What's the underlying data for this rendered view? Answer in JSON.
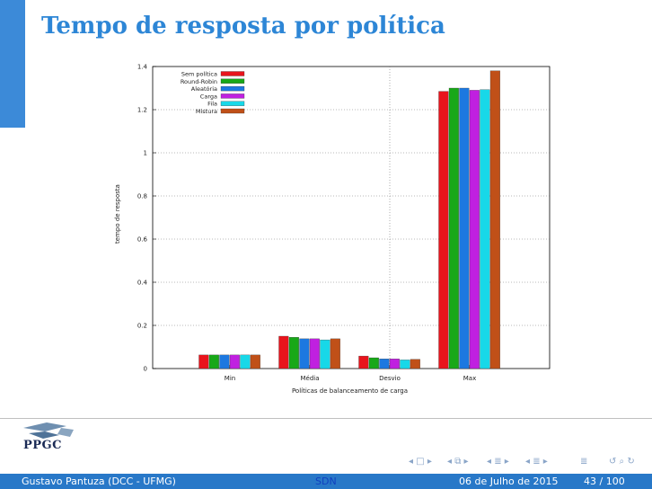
{
  "slide": {
    "title": "Tempo de resposta por política",
    "accent_color": "#3c8ad8",
    "title_color": "#2d86d6"
  },
  "chart_data": {
    "type": "bar",
    "title": "",
    "xlabel": "Políticas de balanceamento de carga",
    "ylabel": "tempo de resposta",
    "ylim": [
      0,
      1.4
    ],
    "yticks": [
      "0",
      "0.2",
      "0.4",
      "0.6",
      "0.8",
      "1",
      "1.2",
      "1.4"
    ],
    "categories": [
      "Min",
      "Média",
      "Desvio",
      "Max"
    ],
    "grid": "dotted, horizontal and vertical",
    "legend_position": "top-left",
    "series": [
      {
        "name": "Sem política",
        "color": "#e8141c",
        "values": [
          0.063,
          0.15,
          0.058,
          1.285
        ]
      },
      {
        "name": "Round-Robin",
        "color": "#18a818",
        "values": [
          0.063,
          0.145,
          0.05,
          1.3
        ]
      },
      {
        "name": "Aleatória",
        "color": "#1c78e0",
        "values": [
          0.063,
          0.138,
          0.045,
          1.3
        ]
      },
      {
        "name": "Carga",
        "color": "#c020e0",
        "values": [
          0.063,
          0.138,
          0.045,
          1.29
        ]
      },
      {
        "name": "Fila",
        "color": "#18d8e8",
        "values": [
          0.063,
          0.133,
          0.04,
          1.293
        ]
      },
      {
        "name": "Mistura",
        "color": "#c05018",
        "values": [
          0.063,
          0.138,
          0.043,
          1.38
        ]
      }
    ]
  },
  "logo": {
    "text": "PPGC"
  },
  "nav_icons": [
    "nav-first-icon",
    "nav-frame-icon",
    "nav-subsection-icon",
    "nav-section-icon",
    "nav-align-icon",
    "nav-search-icon",
    "nav-back-icon"
  ],
  "footer": {
    "author": "Gustavo Pantuza (DCC - UFMG)",
    "short_title": "SDN",
    "date": "06 de Julho de 2015",
    "page": "43 / 100",
    "bg_color": "#2878c8",
    "title_color": "#1040c0"
  }
}
